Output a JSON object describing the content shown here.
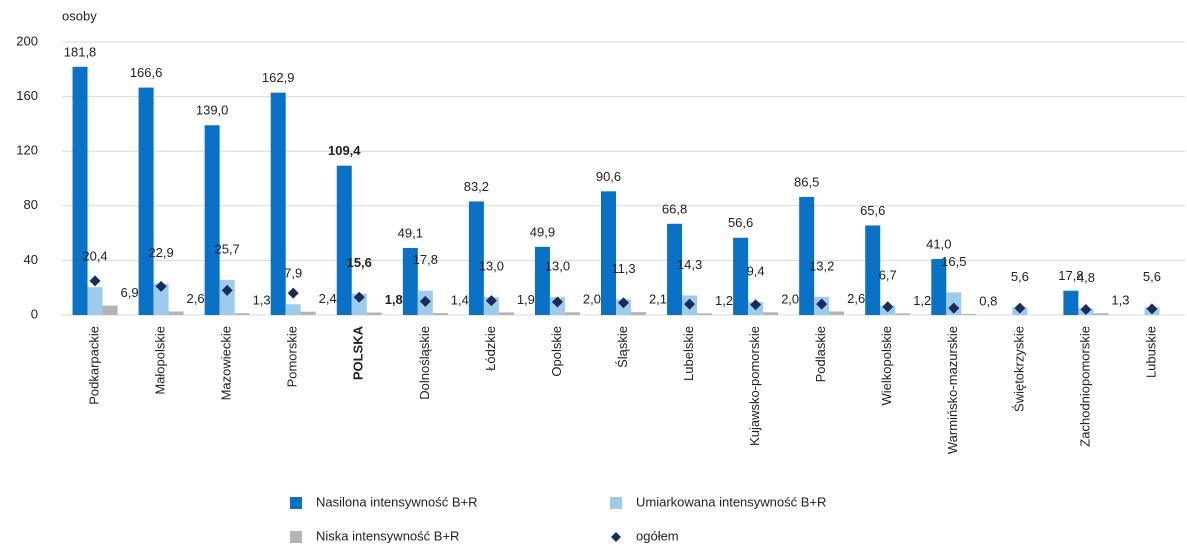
{
  "chart_data": {
    "type": "bar",
    "y_axis_label": "osoby",
    "categories": [
      "Podkarpackie",
      "Małopolskie",
      "Mazowieckie",
      "Pomorskie",
      "POLSKA",
      "Dolnośląskie",
      "Łódzkie",
      "Opolskie",
      "Śląskie",
      "Lubelskie",
      "Kujawsko-pomorskie",
      "Podlaskie",
      "Wielkopolskie",
      "Warmińsko-mazurskie",
      "Świętokrzyskie",
      "Zachodniopomorskie",
      "Lubuskie"
    ],
    "bold_category_index": 4,
    "ylim": [
      0,
      200
    ],
    "yticks": [
      0,
      40,
      80,
      120,
      160,
      200
    ],
    "grid": true,
    "series": [
      {
        "name": "Nasilona intensywność B+R",
        "color": "#0a72c6",
        "values": [
          181.8,
          166.6,
          139.0,
          162.9,
          109.4,
          49.1,
          83.2,
          49.9,
          90.6,
          66.8,
          56.6,
          86.5,
          65.6,
          41.0,
          null,
          17.8,
          null
        ],
        "value_labels": [
          "181,8",
          "166,6",
          "139,0",
          "162,9",
          "109,4",
          "49,1",
          "83,2",
          "49,9",
          "90,6",
          "66,8",
          "56,6",
          "86,5",
          "65,6",
          "41,0",
          null,
          "17,8",
          null
        ]
      },
      {
        "name": "Umiarkowana intensywność B+R",
        "color": "#9ccbec",
        "values": [
          20.4,
          22.9,
          25.7,
          7.9,
          15.6,
          17.8,
          13.0,
          13.0,
          11.3,
          14.3,
          9.4,
          13.2,
          6.7,
          16.5,
          5.6,
          4.8,
          5.6
        ],
        "value_labels": [
          "20,4",
          "22,9",
          "25,7",
          "7,9",
          "15,6",
          "17,8",
          "13,0",
          "13,0",
          "11,3",
          "14,3",
          "9,4",
          "13,2",
          "6,7",
          "16,5",
          "5,6",
          "4,8",
          "5,6"
        ]
      },
      {
        "name": "Niska intensywność B+R",
        "color": "#b4b4b4",
        "values": [
          6.9,
          2.6,
          1.3,
          2.4,
          1.8,
          1.4,
          1.9,
          2.0,
          2.1,
          1.2,
          2.0,
          2.6,
          1.2,
          0.8,
          null,
          1.3,
          null
        ],
        "value_labels": [
          "6,9",
          "2,6",
          "1,3",
          "2,4",
          "1,8",
          "1,4",
          "1,9",
          "2,0",
          "2,1",
          "1,2",
          "2,0",
          "2,6",
          "1,2",
          "0,8",
          null,
          "1,3",
          null
        ]
      },
      {
        "name": "ogółem",
        "color": "#1b2b5c",
        "marker": "diamond",
        "values": [
          25,
          21,
          18,
          16,
          13,
          10,
          10.5,
          9.5,
          9,
          8,
          7.5,
          8,
          6,
          5,
          5,
          4,
          4.5
        ]
      }
    ]
  }
}
